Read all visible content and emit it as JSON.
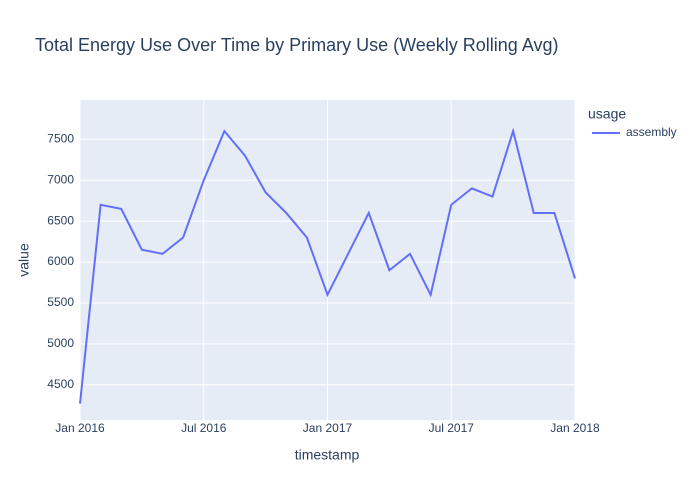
{
  "chart_data": {
    "type": "line",
    "title": "Total Energy Use Over Time by Primary Use (Weekly Rolling Avg)",
    "x_label": "timestamp",
    "y_label": "value",
    "legend_title": "usage",
    "legend": "right",
    "grid": true,
    "x": [
      "2016-01",
      "2016-02",
      "2016-03",
      "2016-04",
      "2016-05",
      "2016-06",
      "2016-07",
      "2016-08",
      "2016-09",
      "2016-10",
      "2016-11",
      "2016-12",
      "2017-01",
      "2017-02",
      "2017-03",
      "2017-04",
      "2017-05",
      "2017-06",
      "2017-07",
      "2017-08",
      "2017-09",
      "2017-10",
      "2017-11",
      "2017-12",
      "2018-01"
    ],
    "series": [
      {
        "name": "assembly",
        "color": "#636efa",
        "values": [
          4270,
          6700,
          6650,
          6150,
          6100,
          6300,
          7000,
          7600,
          7300,
          6850,
          6600,
          6300,
          5600,
          6100,
          6600,
          5900,
          6100,
          5600,
          6700,
          6900,
          6800,
          7600,
          6600,
          6600,
          5800
        ]
      }
    ],
    "xlim": [
      "2016-01",
      "2018-01"
    ],
    "xticks": [
      {
        "value": "2016-01",
        "label": "Jan 2016"
      },
      {
        "value": "2016-07",
        "label": "Jul 2016"
      },
      {
        "value": "2017-01",
        "label": "Jan 2017"
      },
      {
        "value": "2017-07",
        "label": "Jul 2017"
      },
      {
        "value": "2018-01",
        "label": "Jan 2018"
      }
    ],
    "ylim": [
      4070,
      7980
    ],
    "yticks": [
      4500,
      5000,
      5500,
      6000,
      6500,
      7000,
      7500
    ]
  }
}
